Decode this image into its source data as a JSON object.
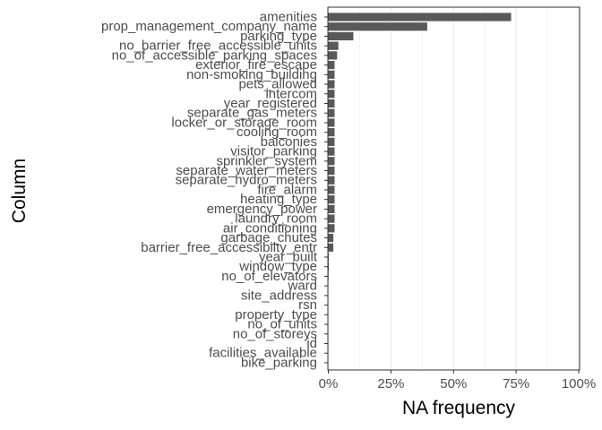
{
  "chart_data": {
    "type": "bar",
    "orientation": "horizontal",
    "xlabel": "NA frequency",
    "ylabel": "Column",
    "xlim": [
      0,
      1
    ],
    "x_ticks": [
      0,
      0.25,
      0.5,
      0.75,
      1
    ],
    "x_tick_labels": [
      "0%",
      "25%",
      "50%",
      "75%",
      "100%"
    ],
    "grid": true,
    "bar_color": "#595959",
    "categories": [
      "amenities",
      "prop_management_company_name",
      "parking_type",
      "no_barrier_free_accessible_units",
      "no_of_accessible_parking_spaces",
      "exterior_fire_escape",
      "non-smoking_building",
      "pets_allowed",
      "intercom",
      "year_registered",
      "separate_gas_meters",
      "locker_or_storage_room",
      "cooling_room",
      "balconies",
      "visitor_parking",
      "sprinkler_system",
      "separate_water_meters",
      "separate_hydro_meters",
      "fire_alarm",
      "heating_type",
      "emergency_power",
      "laundry_room",
      "air_conditioning",
      "garbage_chutes",
      "barrier_free_accessibilty_entr",
      "year_built",
      "window_type",
      "no_of_elevators",
      "ward",
      "site_address",
      "rsn",
      "property_type",
      "no_of_units",
      "no_of_storeys",
      "id",
      "facilities_available",
      "bike_parking"
    ],
    "values": [
      0.73,
      0.395,
      0.1,
      0.04,
      0.035,
      0.025,
      0.025,
      0.025,
      0.025,
      0.025,
      0.025,
      0.025,
      0.025,
      0.025,
      0.025,
      0.025,
      0.025,
      0.025,
      0.025,
      0.025,
      0.025,
      0.025,
      0.025,
      0.02,
      0.02,
      0.002,
      0.002,
      0.001,
      0,
      0,
      0,
      0,
      0,
      0,
      0,
      0,
      0
    ]
  }
}
